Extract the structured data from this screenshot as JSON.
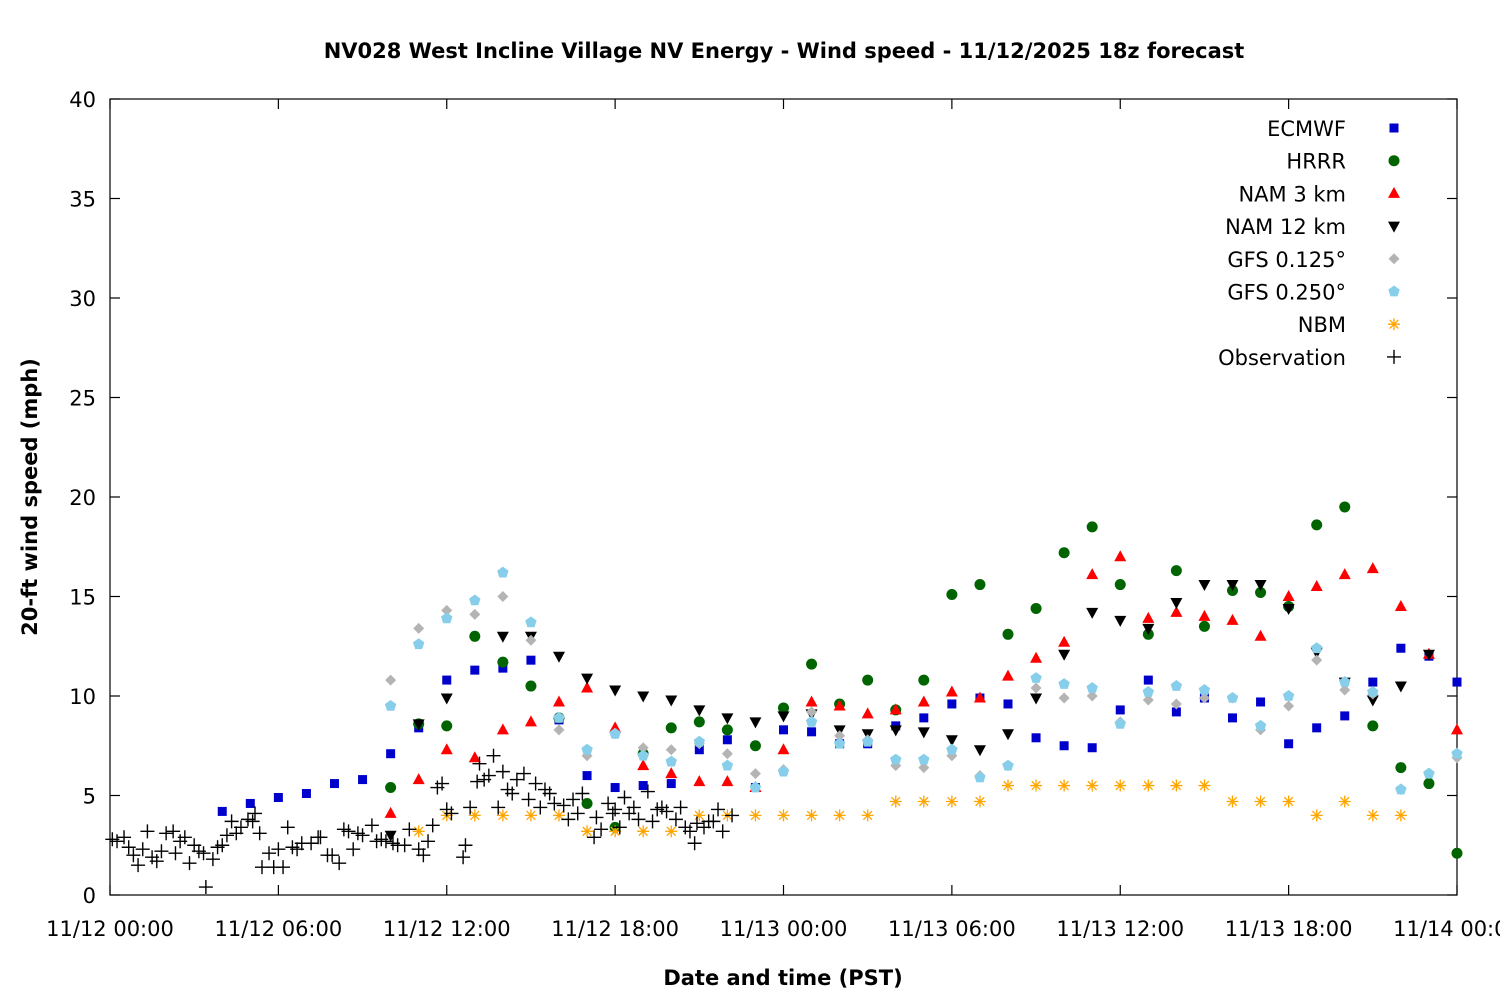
{
  "chart_data": {
    "type": "scatter",
    "title": "NV028 West Incline Village NV Energy - Wind speed - 11/12/2025 18z forecast",
    "xlabel": "Date and time (PST)",
    "ylabel": "20-ft wind speed (mph)",
    "xlim": [
      "11/12 00:00",
      "11/14 00:00"
    ],
    "ylim": [
      0,
      40
    ],
    "grid": false,
    "legend_position": "top-right",
    "x_ticks": [
      "11/12 00:00",
      "11/12 06:00",
      "11/12 12:00",
      "11/12 18:00",
      "11/13 00:00",
      "11/13 06:00",
      "11/13 12:00",
      "11/13 18:00",
      "11/14 00:00"
    ],
    "y_ticks": [
      0,
      5,
      10,
      15,
      20,
      25,
      30,
      35,
      40
    ],
    "x": [
      "11/12 00:00",
      "11/12 01:00",
      "11/12 02:00",
      "11/12 03:00",
      "11/12 04:00",
      "11/12 05:00",
      "11/12 06:00",
      "11/12 07:00",
      "11/12 08:00",
      "11/12 09:00",
      "11/12 10:00",
      "11/12 11:00",
      "11/12 12:00",
      "11/12 13:00",
      "11/12 14:00",
      "11/12 15:00",
      "11/12 16:00",
      "11/12 17:00",
      "11/12 18:00",
      "11/12 19:00",
      "11/12 20:00",
      "11/12 21:00",
      "11/12 22:00",
      "11/12 23:00",
      "11/13 00:00",
      "11/13 01:00",
      "11/13 02:00",
      "11/13 03:00",
      "11/13 04:00",
      "11/13 05:00",
      "11/13 06:00",
      "11/13 07:00",
      "11/13 08:00",
      "11/13 09:00",
      "11/13 10:00",
      "11/13 11:00",
      "11/13 12:00",
      "11/13 13:00",
      "11/13 14:00",
      "11/13 15:00",
      "11/13 16:00",
      "11/13 17:00",
      "11/13 18:00",
      "11/13 19:00",
      "11/13 20:00",
      "11/13 21:00",
      "11/13 22:00",
      "11/13 23:00",
      "11/14 00:00"
    ],
    "series": [
      {
        "name": "ECMWF",
        "marker": "square",
        "color": "#0000cc",
        "values": [
          null,
          null,
          null,
          null,
          4.2,
          4.6,
          4.9,
          5.1,
          5.6,
          5.8,
          7.1,
          8.4,
          10.8,
          11.3,
          11.4,
          11.8,
          8.8,
          6.0,
          5.4,
          5.5,
          5.6,
          7.3,
          7.8,
          5.4,
          8.3,
          8.2,
          7.6,
          7.6,
          8.5,
          8.9,
          9.6,
          9.9,
          9.6,
          7.9,
          7.5,
          7.4,
          9.3,
          10.8,
          9.2,
          9.9,
          8.9,
          9.7,
          7.6,
          8.4,
          9.0,
          10.7,
          12.4,
          12.0,
          10.7
        ]
      },
      {
        "name": "HRRR",
        "marker": "circle",
        "color": "#006400",
        "values": [
          null,
          null,
          null,
          null,
          null,
          null,
          null,
          null,
          null,
          null,
          5.4,
          8.6,
          8.5,
          13.0,
          11.7,
          10.5,
          8.9,
          4.6,
          3.4,
          7.1,
          8.4,
          8.7,
          8.3,
          7.5,
          9.4,
          11.6,
          9.6,
          10.8,
          9.3,
          10.8,
          15.1,
          15.6,
          13.1,
          14.4,
          17.2,
          18.5,
          15.6,
          13.1,
          16.3,
          13.5,
          15.3,
          15.2,
          14.5,
          18.6,
          19.5,
          8.5,
          6.4,
          5.6,
          2.1
        ]
      },
      {
        "name": "NAM 3 km",
        "marker": "triangle-up",
        "color": "#ff0000",
        "values": [
          null,
          null,
          null,
          null,
          null,
          null,
          null,
          null,
          null,
          null,
          4.1,
          5.8,
          7.3,
          6.9,
          8.3,
          8.7,
          9.7,
          10.4,
          8.4,
          6.5,
          6.1,
          5.7,
          5.7,
          5.4,
          7.3,
          9.7,
          9.5,
          9.1,
          9.3,
          9.7,
          10.2,
          9.9,
          11.0,
          11.9,
          12.7,
          16.1,
          17.0,
          13.9,
          14.2,
          14.0,
          13.8,
          13.0,
          15.0,
          15.5,
          16.1,
          16.4,
          14.5,
          12.1,
          8.3
        ]
      },
      {
        "name": "NAM 12 km",
        "marker": "triangle-down",
        "color": "#000000",
        "values": [
          null,
          null,
          null,
          null,
          null,
          null,
          null,
          null,
          null,
          null,
          3.0,
          8.6,
          9.9,
          null,
          13.0,
          13.0,
          12.0,
          10.9,
          10.3,
          10.0,
          9.8,
          9.3,
          8.9,
          8.7,
          9.0,
          9.1,
          8.3,
          8.1,
          8.3,
          8.2,
          7.8,
          7.3,
          8.1,
          9.9,
          12.1,
          14.2,
          13.8,
          13.4,
          14.7,
          15.6,
          15.6,
          15.6,
          14.4,
          12.2,
          10.7,
          9.8,
          10.5,
          12.1,
          null
        ]
      },
      {
        "name": "GFS 0.125°",
        "marker": "diamond",
        "color": "#b4b4b4",
        "values": [
          null,
          null,
          null,
          null,
          null,
          null,
          null,
          null,
          null,
          null,
          10.8,
          13.4,
          14.3,
          14.1,
          15.0,
          12.8,
          8.3,
          7.0,
          8.1,
          7.4,
          7.3,
          7.6,
          7.1,
          6.1,
          6.3,
          9.2,
          8.0,
          7.8,
          6.5,
          6.4,
          7.0,
          6.0,
          6.5,
          10.4,
          9.9,
          10.0,
          8.7,
          9.8,
          9.6,
          9.9,
          9.9,
          8.3,
          9.5,
          11.8,
          10.3,
          10.1,
          5.3,
          6.1,
          6.9
        ]
      },
      {
        "name": "GFS 0.250°",
        "marker": "pentagon",
        "color": "#87ceeb",
        "values": [
          null,
          null,
          null,
          null,
          null,
          null,
          null,
          null,
          null,
          null,
          9.5,
          12.6,
          13.9,
          14.8,
          16.2,
          13.7,
          8.9,
          7.3,
          8.1,
          7.0,
          6.7,
          7.7,
          6.5,
          5.4,
          6.2,
          8.7,
          7.6,
          7.7,
          6.8,
          6.8,
          7.3,
          5.9,
          6.5,
          10.9,
          10.6,
          10.4,
          8.6,
          10.2,
          10.5,
          10.3,
          9.9,
          8.5,
          10.0,
          12.4,
          10.7,
          10.2,
          5.3,
          6.1,
          7.1
        ]
      },
      {
        "name": "NBM",
        "marker": "asterisk",
        "color": "#ffa500",
        "values": [
          null,
          null,
          null,
          null,
          null,
          null,
          null,
          null,
          null,
          null,
          null,
          3.2,
          4.0,
          4.0,
          4.0,
          4.0,
          4.0,
          3.2,
          3.2,
          3.2,
          3.2,
          4.0,
          4.0,
          4.0,
          4.0,
          4.0,
          4.0,
          4.0,
          4.7,
          4.7,
          4.7,
          4.7,
          5.5,
          5.5,
          5.5,
          5.5,
          5.5,
          5.5,
          5.5,
          5.5,
          4.7,
          4.7,
          4.7,
          4.0,
          4.7,
          4.0,
          4.0,
          null,
          null
        ]
      }
    ],
    "observation": {
      "name": "Observation",
      "marker": "plus",
      "color": "#000000",
      "points": [
        [
          "11/12 00:05",
          2.8
        ],
        [
          "11/12 00:15",
          2.7
        ],
        [
          "11/12 00:30",
          2.9
        ],
        [
          "11/12 00:40",
          2.4
        ],
        [
          "11/12 00:50",
          2.0
        ],
        [
          "11/12 01:00",
          1.5
        ],
        [
          "11/12 01:10",
          2.3
        ],
        [
          "11/12 01:20",
          3.2
        ],
        [
          "11/12 01:30",
          1.9
        ],
        [
          "11/12 01:40",
          1.7
        ],
        [
          "11/12 01:50",
          2.2
        ],
        [
          "11/12 02:00",
          3.1
        ],
        [
          "11/12 02:15",
          3.2
        ],
        [
          "11/12 02:20",
          2.1
        ],
        [
          "11/12 02:30",
          2.7
        ],
        [
          "11/12 02:40",
          2.9
        ],
        [
          "11/12 02:50",
          1.6
        ],
        [
          "11/12 03:00",
          2.5
        ],
        [
          "11/12 03:10",
          2.2
        ],
        [
          "11/12 03:20",
          2.1
        ],
        [
          "11/12 03:25",
          0.4
        ],
        [
          "11/12 03:40",
          1.8
        ],
        [
          "11/12 03:50",
          2.4
        ],
        [
          "11/12 04:00",
          2.5
        ],
        [
          "11/12 04:10",
          3.0
        ],
        [
          "11/12 04:20",
          3.7
        ],
        [
          "11/12 04:30",
          3.1
        ],
        [
          "11/12 04:40",
          3.4
        ],
        [
          "11/12 04:55",
          3.8
        ],
        [
          "11/12 05:05",
          3.7
        ],
        [
          "11/12 05:10",
          4.1
        ],
        [
          "11/12 05:20",
          3.1
        ],
        [
          "11/12 05:25",
          1.4
        ],
        [
          "11/12 05:40",
          2.1
        ],
        [
          "11/12 05:50",
          1.4
        ],
        [
          "11/12 06:00",
          2.3
        ],
        [
          "11/12 06:10",
          1.4
        ],
        [
          "11/12 06:20",
          3.4
        ],
        [
          "11/12 06:30",
          2.4
        ],
        [
          "11/12 06:40",
          2.3
        ],
        [
          "11/12 06:50",
          2.6
        ],
        [
          "11/12 07:10",
          2.6
        ],
        [
          "11/12 07:25",
          2.9
        ],
        [
          "11/12 07:30",
          2.9
        ],
        [
          "11/12 07:45",
          2.0
        ],
        [
          "11/12 07:55",
          2.0
        ],
        [
          "11/12 08:10",
          1.6
        ],
        [
          "11/12 08:20",
          3.3
        ],
        [
          "11/12 08:30",
          3.2
        ],
        [
          "11/12 08:40",
          2.3
        ],
        [
          "11/12 08:50",
          3.1
        ],
        [
          "11/12 09:00",
          3.0
        ],
        [
          "11/12 09:20",
          3.5
        ],
        [
          "11/12 09:30",
          2.7
        ],
        [
          "11/12 09:40",
          2.8
        ],
        [
          "11/12 09:50",
          2.7
        ],
        [
          "11/12 10:05",
          2.6
        ],
        [
          "11/12 10:15",
          2.5
        ],
        [
          "11/12 10:30",
          2.5
        ],
        [
          "11/12 10:40",
          3.3
        ],
        [
          "11/12 11:00",
          2.3
        ],
        [
          "11/12 11:10",
          2.0
        ],
        [
          "11/12 11:20",
          2.7
        ],
        [
          "11/12 11:30",
          3.5
        ],
        [
          "11/12 11:40",
          5.4
        ],
        [
          "11/12 11:50",
          5.6
        ],
        [
          "11/12 12:00",
          4.3
        ],
        [
          "11/12 12:10",
          4.1
        ],
        [
          "11/12 12:35",
          1.9
        ],
        [
          "11/12 12:40",
          2.5
        ],
        [
          "11/12 12:50",
          4.4
        ],
        [
          "11/12 13:05",
          5.7
        ],
        [
          "11/12 13:10",
          6.6
        ],
        [
          "11/12 13:20",
          5.8
        ],
        [
          "11/12 13:30",
          6.0
        ],
        [
          "11/12 13:40",
          7.0
        ],
        [
          "11/12 13:50",
          4.4
        ],
        [
          "11/12 14:00",
          6.2
        ],
        [
          "11/12 14:10",
          5.3
        ],
        [
          "11/12 14:20",
          5.1
        ],
        [
          "11/12 14:30",
          5.8
        ],
        [
          "11/12 14:45",
          6.1
        ],
        [
          "11/12 14:55",
          4.8
        ],
        [
          "11/12 15:10",
          5.6
        ],
        [
          "11/12 15:20",
          4.4
        ],
        [
          "11/12 15:30",
          5.3
        ],
        [
          "11/12 15:40",
          5.1
        ],
        [
          "11/12 15:50",
          4.6
        ],
        [
          "11/12 16:10",
          4.5
        ],
        [
          "11/12 16:20",
          3.8
        ],
        [
          "11/12 16:30",
          4.8
        ],
        [
          "11/12 16:40",
          4.1
        ],
        [
          "11/12 16:50",
          5.1
        ],
        [
          "11/12 17:15",
          2.9
        ],
        [
          "11/12 17:20",
          3.9
        ],
        [
          "11/12 17:30",
          3.3
        ],
        [
          "11/12 17:45",
          4.6
        ],
        [
          "11/12 17:55",
          4.1
        ],
        [
          "11/12 18:00",
          4.3
        ],
        [
          "11/12 18:10",
          3.4
        ],
        [
          "11/12 18:20",
          4.9
        ],
        [
          "11/12 18:30",
          4.1
        ],
        [
          "11/12 18:40",
          4.4
        ],
        [
          "11/12 18:50",
          3.8
        ],
        [
          "11/12 19:10",
          5.2
        ],
        [
          "11/12 19:20",
          3.7
        ],
        [
          "11/12 19:30",
          4.3
        ],
        [
          "11/12 19:40",
          4.4
        ],
        [
          "11/12 19:50",
          4.2
        ],
        [
          "11/12 20:10",
          3.8
        ],
        [
          "11/12 20:20",
          4.4
        ],
        [
          "11/12 20:30",
          3.4
        ],
        [
          "11/12 20:40",
          3.2
        ],
        [
          "11/12 20:50",
          2.6
        ],
        [
          "11/12 20:55",
          3.6
        ],
        [
          "11/12 21:10",
          3.4
        ],
        [
          "11/12 21:20",
          3.7
        ],
        [
          "11/12 21:30",
          3.7
        ],
        [
          "11/12 21:40",
          4.3
        ],
        [
          "11/12 21:50",
          3.2
        ],
        [
          "11/12 22:10",
          4.0
        ]
      ]
    }
  }
}
